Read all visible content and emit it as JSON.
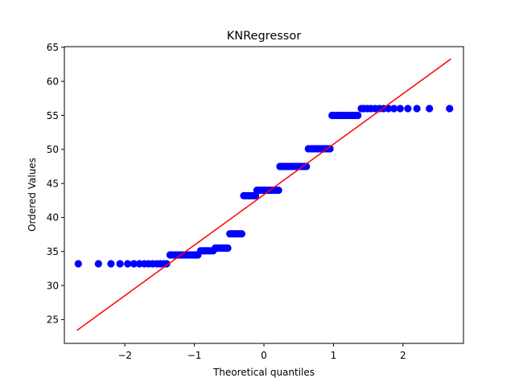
{
  "chart_data": {
    "type": "scatter",
    "title": "KNRegressor",
    "xlabel": "Theoretical quantiles",
    "ylabel": "Ordered Values",
    "xlim": [
      -2.87,
      2.87
    ],
    "ylim": [
      21.5,
      65.1
    ],
    "xticks": [
      -2,
      -1,
      0,
      1,
      2
    ],
    "xtick_labels": [
      "−2",
      "−1",
      "0",
      "1",
      "2"
    ],
    "yticks": [
      25,
      30,
      35,
      40,
      45,
      50,
      55,
      60,
      65
    ],
    "ytick_labels": [
      "25",
      "30",
      "35",
      "40",
      "45",
      "50",
      "55",
      "60",
      "65"
    ],
    "grid": false,
    "series": [
      {
        "kind": "points",
        "color": "#0000ff",
        "points": [
          [
            -2.67,
            33.2
          ],
          [
            -2.38,
            33.2
          ],
          [
            -2.2,
            33.2
          ],
          [
            -2.07,
            33.2
          ],
          [
            -1.96,
            33.2
          ],
          [
            -1.87,
            33.2
          ],
          [
            -1.79,
            33.2
          ],
          [
            -1.72,
            33.2
          ],
          [
            -1.66,
            33.2
          ],
          [
            -1.6,
            33.2
          ],
          [
            -1.54,
            33.2
          ],
          [
            -1.49,
            33.2
          ],
          [
            -1.44,
            33.2
          ],
          [
            -1.4,
            33.2
          ],
          [
            -1.35,
            34.5
          ],
          [
            -1.31,
            34.5
          ],
          [
            -1.27,
            34.5
          ],
          [
            -1.23,
            34.5
          ],
          [
            -1.19,
            34.5
          ],
          [
            -1.15,
            34.5
          ],
          [
            -1.12,
            34.5
          ],
          [
            -1.08,
            34.5
          ],
          [
            -1.05,
            34.5
          ],
          [
            -1.01,
            34.5
          ],
          [
            -0.98,
            34.5
          ],
          [
            -0.95,
            34.5
          ],
          [
            -0.91,
            35.1
          ],
          [
            -0.88,
            35.1
          ],
          [
            -0.85,
            35.1
          ],
          [
            -0.82,
            35.1
          ],
          [
            -0.79,
            35.1
          ],
          [
            -0.76,
            35.1
          ],
          [
            -0.73,
            35.1
          ],
          [
            -0.7,
            35.5
          ],
          [
            -0.67,
            35.5
          ],
          [
            -0.64,
            35.5
          ],
          [
            -0.61,
            35.5
          ],
          [
            -0.58,
            35.5
          ],
          [
            -0.55,
            35.5
          ],
          [
            -0.52,
            35.5
          ],
          [
            -0.49,
            37.6
          ],
          [
            -0.46,
            37.6
          ],
          [
            -0.43,
            37.6
          ],
          [
            -0.4,
            37.6
          ],
          [
            -0.37,
            37.6
          ],
          [
            -0.35,
            37.6
          ],
          [
            -0.32,
            37.6
          ],
          [
            -0.29,
            43.2
          ],
          [
            -0.26,
            43.2
          ],
          [
            -0.23,
            43.2
          ],
          [
            -0.21,
            43.2
          ],
          [
            -0.18,
            43.2
          ],
          [
            -0.15,
            43.2
          ],
          [
            -0.12,
            43.2
          ],
          [
            -0.1,
            44.0
          ],
          [
            -0.07,
            44.0
          ],
          [
            -0.04,
            44.0
          ],
          [
            -0.01,
            44.0
          ],
          [
            0.01,
            44.0
          ],
          [
            0.04,
            44.0
          ],
          [
            0.07,
            44.0
          ],
          [
            0.1,
            44.0
          ],
          [
            0.12,
            44.0
          ],
          [
            0.15,
            44.0
          ],
          [
            0.18,
            44.0
          ],
          [
            0.21,
            44.0
          ],
          [
            0.23,
            47.5
          ],
          [
            0.26,
            47.5
          ],
          [
            0.29,
            47.5
          ],
          [
            0.32,
            47.5
          ],
          [
            0.35,
            47.5
          ],
          [
            0.37,
            47.5
          ],
          [
            0.4,
            47.5
          ],
          [
            0.43,
            47.5
          ],
          [
            0.46,
            47.5
          ],
          [
            0.49,
            47.5
          ],
          [
            0.52,
            47.5
          ],
          [
            0.55,
            47.5
          ],
          [
            0.58,
            47.5
          ],
          [
            0.61,
            47.5
          ],
          [
            0.64,
            50.1
          ],
          [
            0.67,
            50.1
          ],
          [
            0.7,
            50.1
          ],
          [
            0.73,
            50.1
          ],
          [
            0.76,
            50.1
          ],
          [
            0.79,
            50.1
          ],
          [
            0.82,
            50.1
          ],
          [
            0.85,
            50.1
          ],
          [
            0.88,
            50.1
          ],
          [
            0.91,
            50.1
          ],
          [
            0.95,
            50.1
          ],
          [
            0.98,
            55.0
          ],
          [
            1.01,
            55.0
          ],
          [
            1.05,
            55.0
          ],
          [
            1.08,
            55.0
          ],
          [
            1.12,
            55.0
          ],
          [
            1.15,
            55.0
          ],
          [
            1.19,
            55.0
          ],
          [
            1.23,
            55.0
          ],
          [
            1.27,
            55.0
          ],
          [
            1.31,
            55.0
          ],
          [
            1.35,
            55.0
          ],
          [
            1.4,
            56.0
          ],
          [
            1.44,
            56.0
          ],
          [
            1.49,
            56.0
          ],
          [
            1.54,
            56.0
          ],
          [
            1.6,
            56.0
          ],
          [
            1.66,
            56.0
          ],
          [
            1.72,
            56.0
          ],
          [
            1.79,
            56.0
          ],
          [
            1.87,
            56.0
          ],
          [
            1.96,
            56.0
          ],
          [
            2.07,
            56.0
          ],
          [
            2.2,
            56.0
          ],
          [
            2.38,
            56.0
          ],
          [
            2.67,
            56.0
          ]
        ]
      },
      {
        "kind": "fit-line",
        "color": "#ff0000",
        "x": [
          -2.69,
          2.69
        ],
        "y": [
          23.4,
          63.3
        ]
      }
    ]
  }
}
